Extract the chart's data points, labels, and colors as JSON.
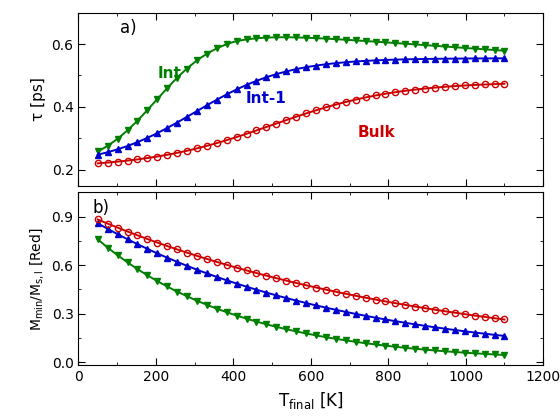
{
  "title_a": "a)",
  "title_b": "b)",
  "xlabel": "T$_{\\mathrm{final}}$ [K]",
  "ylabel_a": "τ [ps]",
  "ylabel_b": "M$_{\\mathrm{min}}$/M$_{\\mathrm{s,l}}$ [Red]",
  "xlim": [
    0,
    1200
  ],
  "ylim_a": [
    0.15,
    0.7
  ],
  "ylim_b": [
    -0.02,
    1.05
  ],
  "xticks": [
    0,
    200,
    400,
    600,
    800,
    1000,
    1200
  ],
  "yticks_a": [
    0.2,
    0.4,
    0.6
  ],
  "yticks_b": [
    0.0,
    0.3,
    0.6,
    0.9
  ],
  "colors": {
    "int": "#008000",
    "int1": "#0000cc",
    "bulk": "#cc0000"
  },
  "background": "#f0f0f0"
}
